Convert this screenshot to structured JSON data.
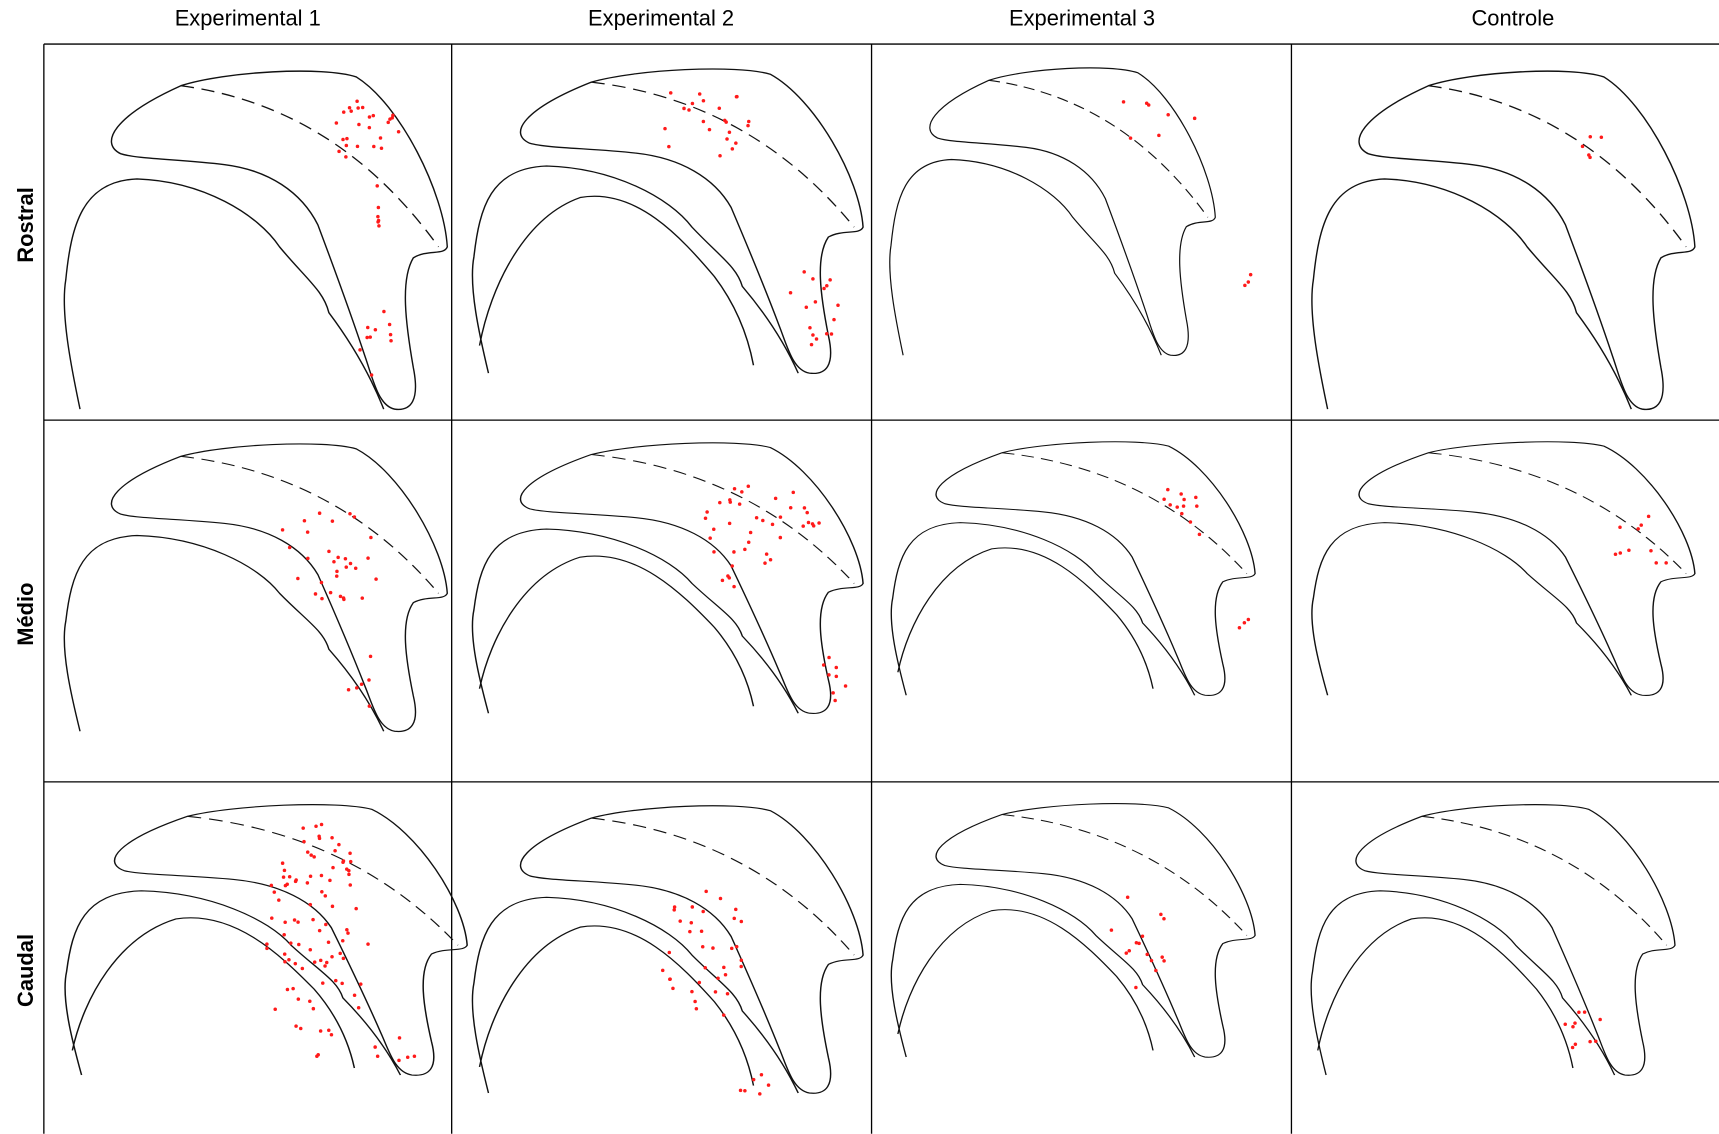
{
  "columns": [
    "Experimental 1",
    "Experimental 2",
    "Experimental 3",
    "Controle"
  ],
  "rows": [
    "Rostral",
    "Médio",
    "Caudal"
  ]
}
